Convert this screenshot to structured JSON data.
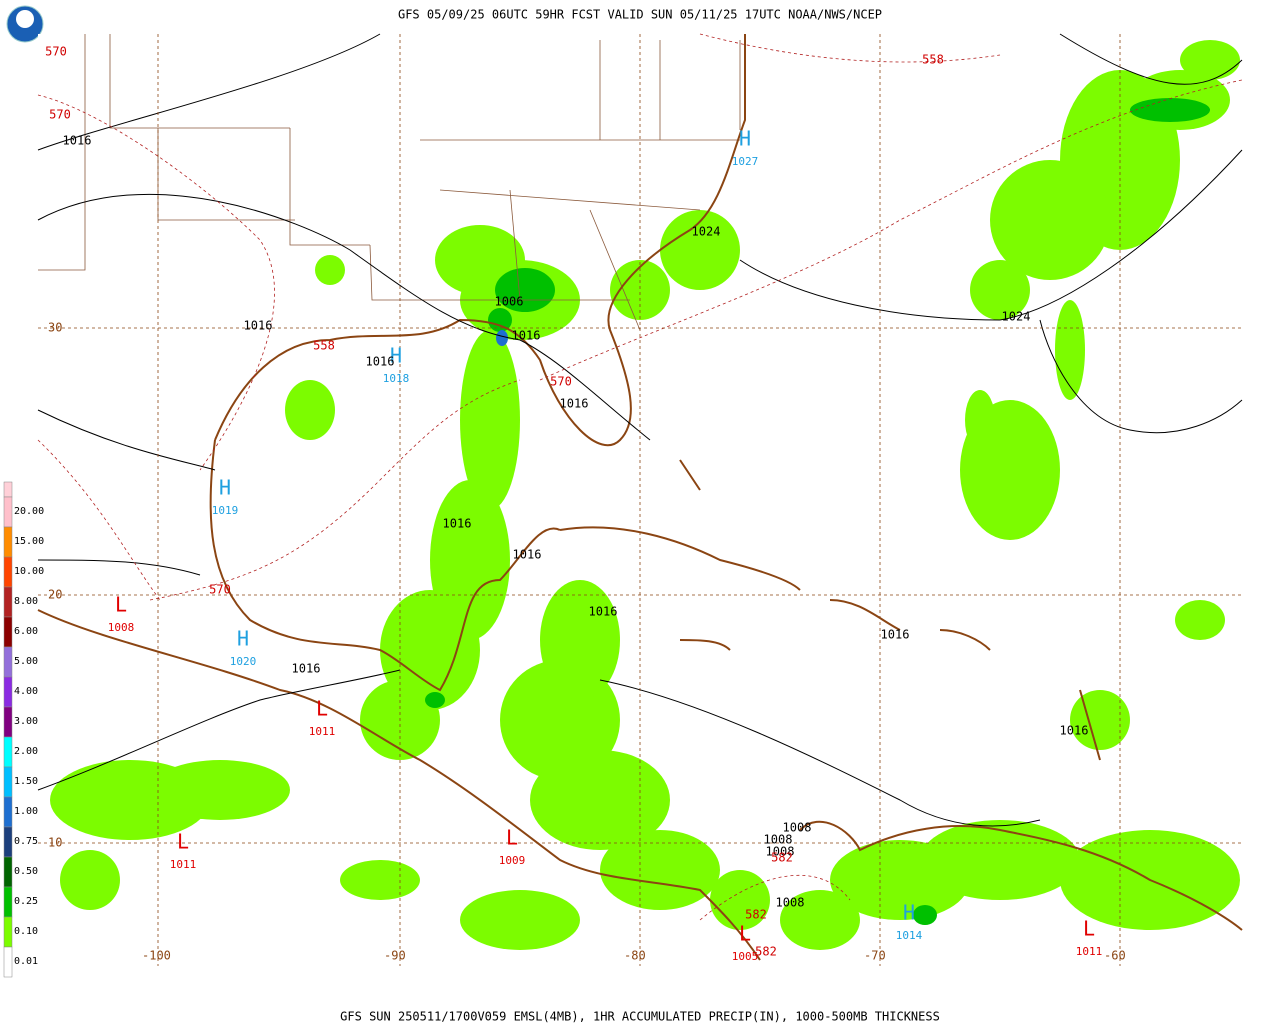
{
  "header": {
    "title": "GFS 05/09/25 06UTC 59HR FCST VALID SUN 05/11/25 17UTC NOAA/NWS/NCEP"
  },
  "footer": {
    "caption": "GFS SUN 250511/1700V059 EMSL(4MB), 1HR ACCUMULATED PRECIP(IN), 1000-500MB THICKNESS"
  },
  "legend": {
    "items": [
      {
        "label": "20.00",
        "color": "#ffc0cb"
      },
      {
        "label": "15.00",
        "color": "#ff8c00"
      },
      {
        "label": "10.00",
        "color": "#ff4500"
      },
      {
        "label": "8.00",
        "color": "#b22222"
      },
      {
        "label": "6.00",
        "color": "#8b0000"
      },
      {
        "label": "5.00",
        "color": "#9370db"
      },
      {
        "label": "4.00",
        "color": "#8a2be2"
      },
      {
        "label": "3.00",
        "color": "#800080"
      },
      {
        "label": "2.00",
        "color": "#00ffff"
      },
      {
        "label": "1.50",
        "color": "#00bfff"
      },
      {
        "label": "1.00",
        "color": "#1e6fd0"
      },
      {
        "label": "0.75",
        "color": "#1c3f7c"
      },
      {
        "label": "0.50",
        "color": "#006400"
      },
      {
        "label": "0.25",
        "color": "#00c000"
      },
      {
        "label": "0.10",
        "color": "#7cfc00"
      },
      {
        "label": "0.01",
        "color": "#ffffff"
      }
    ]
  },
  "latitudes": [
    30,
    20,
    10
  ],
  "longitudes": [
    -100,
    -90,
    -80,
    -70,
    -60
  ],
  "pressure_centers": [
    {
      "symbol": "H",
      "value": 1027
    },
    {
      "symbol": "H",
      "value": 1018
    },
    {
      "symbol": "H",
      "value": 1019
    },
    {
      "symbol": "H",
      "value": 1020
    },
    {
      "symbol": "L",
      "value": 1008
    },
    {
      "symbol": "L",
      "value": 1011
    },
    {
      "symbol": "L",
      "value": 1011
    },
    {
      "symbol": "L",
      "value": 1009
    },
    {
      "symbol": "L",
      "value": 1005
    },
    {
      "symbol": "H",
      "value": 1014
    },
    {
      "symbol": "L",
      "value": 1011
    }
  ],
  "isobar_labels": [
    1016,
    1024,
    1006,
    1016,
    1016,
    1016,
    1016,
    1024,
    1016,
    1016,
    1016,
    1016,
    1016,
    1016,
    1008,
    1008,
    1008,
    1008
  ],
  "thickness_labels": [
    570,
    570,
    558,
    558,
    570,
    570,
    582,
    582,
    582
  ]
}
